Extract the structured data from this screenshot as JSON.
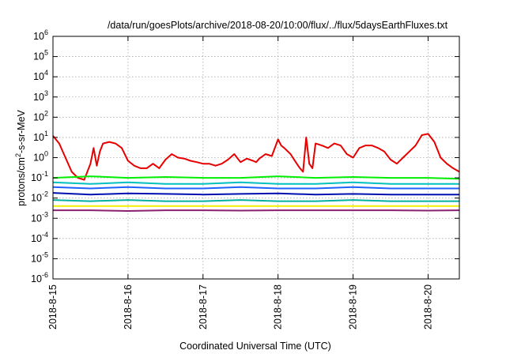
{
  "chart_data": {
    "type": "line",
    "title": "/data/run/goesPlots/archive/2018-08-20/10:00/flux/../flux/5daysEarthFluxes.txt",
    "xlabel": "Coordinated Universal Time (UTC)",
    "ylabel_base": "protons/cm",
    "ylabel_sup": "2",
    "ylabel_rest": "-s-sr-MeV",
    "y_scale": "log",
    "ylim": [
      1e-06,
      1000000.0
    ],
    "xlim": [
      "2018-08-15 00:00",
      "2018-08-20 10:00"
    ],
    "grid": true,
    "legend": "none",
    "x_ticks": [
      "2018-8-15",
      "2018-8-16",
      "2018-8-17",
      "2018-8-18",
      "2018-8-19",
      "2018-8-20"
    ],
    "y_ticks": [
      {
        "base": "10",
        "exp": "-6"
      },
      {
        "base": "10",
        "exp": "-5"
      },
      {
        "base": "10",
        "exp": "-4"
      },
      {
        "base": "10",
        "exp": "-3"
      },
      {
        "base": "10",
        "exp": "-2"
      },
      {
        "base": "10",
        "exp": "-1"
      },
      {
        "base": "10",
        "exp": "0"
      },
      {
        "base": "10",
        "exp": "1"
      },
      {
        "base": "10",
        "exp": "2"
      },
      {
        "base": "10",
        "exp": "3"
      },
      {
        "base": "10",
        "exp": "4"
      },
      {
        "base": "10",
        "exp": "5"
      },
      {
        "base": "10",
        "exp": "6"
      }
    ],
    "series": [
      {
        "color": "#e60000",
        "x": [
          "2018-08-15 00:00",
          "2018-08-15 02:00",
          "2018-08-15 04:00",
          "2018-08-15 06:00",
          "2018-08-15 08:00",
          "2018-08-15 10:00",
          "2018-08-15 12:00",
          "2018-08-15 13:00",
          "2018-08-15 14:00",
          "2018-08-15 15:00",
          "2018-08-15 16:00",
          "2018-08-15 18:00",
          "2018-08-15 20:00",
          "2018-08-15 22:00",
          "2018-08-16 00:00",
          "2018-08-16 02:00",
          "2018-08-16 04:00",
          "2018-08-16 06:00",
          "2018-08-16 08:00",
          "2018-08-16 10:00",
          "2018-08-16 12:00",
          "2018-08-16 14:00",
          "2018-08-16 16:00",
          "2018-08-16 18:00",
          "2018-08-16 20:00",
          "2018-08-16 22:00",
          "2018-08-17 00:00",
          "2018-08-17 02:00",
          "2018-08-17 04:00",
          "2018-08-17 06:00",
          "2018-08-17 08:00",
          "2018-08-17 10:00",
          "2018-08-17 12:00",
          "2018-08-17 14:00",
          "2018-08-17 16:00",
          "2018-08-17 17:00",
          "2018-08-17 18:00",
          "2018-08-17 20:00",
          "2018-08-17 22:00",
          "2018-08-18 00:00",
          "2018-08-18 01:00",
          "2018-08-18 02:00",
          "2018-08-18 04:00",
          "2018-08-18 06:00",
          "2018-08-18 07:00",
          "2018-08-18 08:00",
          "2018-08-18 09:00",
          "2018-08-18 10:00",
          "2018-08-18 11:00",
          "2018-08-18 12:00",
          "2018-08-18 14:00",
          "2018-08-18 16:00",
          "2018-08-18 18:00",
          "2018-08-18 20:00",
          "2018-08-18 22:00",
          "2018-08-19 00:00",
          "2018-08-19 02:00",
          "2018-08-19 04:00",
          "2018-08-19 06:00",
          "2018-08-19 08:00",
          "2018-08-19 10:00",
          "2018-08-19 12:00",
          "2018-08-19 14:00",
          "2018-08-19 16:00",
          "2018-08-19 18:00",
          "2018-08-19 20:00",
          "2018-08-19 22:00",
          "2018-08-20 00:00",
          "2018-08-20 02:00",
          "2018-08-20 04:00",
          "2018-08-20 06:00",
          "2018-08-20 08:00",
          "2018-08-20 10:00"
        ],
        "y": [
          12,
          5,
          1,
          0.2,
          0.1,
          0.08,
          0.5,
          3,
          0.4,
          2,
          5,
          6,
          5,
          3,
          0.7,
          0.4,
          0.3,
          0.3,
          0.5,
          0.3,
          0.8,
          1.5,
          1,
          0.9,
          0.7,
          0.6,
          0.5,
          0.5,
          0.4,
          0.5,
          0.8,
          1.5,
          0.6,
          0.9,
          0.7,
          0.6,
          0.9,
          1.5,
          1.2,
          8,
          4,
          3,
          1.5,
          0.5,
          0.3,
          0.2,
          10,
          0.5,
          0.3,
          5,
          4,
          3,
          5,
          4,
          1.5,
          1,
          3,
          4,
          4,
          3,
          2,
          0.8,
          0.5,
          1,
          2,
          4,
          13,
          15,
          6,
          1,
          0.5,
          0.3,
          0.2
        ]
      },
      {
        "color": "#00ee00",
        "x": [
          "2018-08-15 00:00",
          "2018-08-15 12:00",
          "2018-08-16 00:00",
          "2018-08-16 12:00",
          "2018-08-17 00:00",
          "2018-08-17 12:00",
          "2018-08-18 00:00",
          "2018-08-18 12:00",
          "2018-08-19 00:00",
          "2018-08-19 12:00",
          "2018-08-20 00:00",
          "2018-08-20 10:00"
        ],
        "y": [
          0.1,
          0.12,
          0.1,
          0.11,
          0.1,
          0.1,
          0.12,
          0.1,
          0.11,
          0.1,
          0.1,
          0.09
        ]
      },
      {
        "color": "#00c0c0",
        "x": [
          "2018-08-15 00:00",
          "2018-08-15 12:00",
          "2018-08-16 00:00",
          "2018-08-16 12:00",
          "2018-08-17 00:00",
          "2018-08-17 12:00",
          "2018-08-18 00:00",
          "2018-08-18 12:00",
          "2018-08-19 00:00",
          "2018-08-19 12:00",
          "2018-08-20 00:00",
          "2018-08-20 10:00"
        ],
        "y": [
          0.06,
          0.05,
          0.06,
          0.05,
          0.05,
          0.06,
          0.05,
          0.05,
          0.06,
          0.05,
          0.05,
          0.05
        ]
      },
      {
        "color": "#2060ff",
        "x": [
          "2018-08-15 00:00",
          "2018-08-15 12:00",
          "2018-08-16 00:00",
          "2018-08-16 12:00",
          "2018-08-17 00:00",
          "2018-08-17 12:00",
          "2018-08-18 00:00",
          "2018-08-18 12:00",
          "2018-08-19 00:00",
          "2018-08-19 12:00",
          "2018-08-20 00:00",
          "2018-08-20 10:00"
        ],
        "y": [
          0.035,
          0.03,
          0.035,
          0.03,
          0.03,
          0.035,
          0.03,
          0.03,
          0.035,
          0.03,
          0.03,
          0.03
        ]
      },
      {
        "color": "#0010b0",
        "x": [
          "2018-08-15 00:00",
          "2018-08-15 12:00",
          "2018-08-16 00:00",
          "2018-08-16 12:00",
          "2018-08-17 00:00",
          "2018-08-17 12:00",
          "2018-08-18 00:00",
          "2018-08-18 12:00",
          "2018-08-19 00:00",
          "2018-08-19 12:00",
          "2018-08-20 00:00",
          "2018-08-20 10:00"
        ],
        "y": [
          0.018,
          0.015,
          0.017,
          0.016,
          0.015,
          0.016,
          0.017,
          0.015,
          0.016,
          0.015,
          0.015,
          0.015
        ]
      },
      {
        "color": "#00b0a0",
        "x": [
          "2018-08-15 00:00",
          "2018-08-15 12:00",
          "2018-08-16 00:00",
          "2018-08-16 12:00",
          "2018-08-17 00:00",
          "2018-08-17 12:00",
          "2018-08-18 00:00",
          "2018-08-18 12:00",
          "2018-08-19 00:00",
          "2018-08-19 12:00",
          "2018-08-20 00:00",
          "2018-08-20 10:00"
        ],
        "y": [
          0.008,
          0.007,
          0.008,
          0.007,
          0.007,
          0.008,
          0.007,
          0.007,
          0.008,
          0.007,
          0.007,
          0.007
        ]
      },
      {
        "color": "#f0f000",
        "x": [
          "2018-08-15 00:00",
          "2018-08-15 12:00",
          "2018-08-16 00:00",
          "2018-08-16 12:00",
          "2018-08-17 00:00",
          "2018-08-17 12:00",
          "2018-08-18 00:00",
          "2018-08-18 12:00",
          "2018-08-19 00:00",
          "2018-08-19 12:00",
          "2018-08-20 00:00",
          "2018-08-20 10:00"
        ],
        "y": [
          0.004,
          0.004,
          0.004,
          0.004,
          0.004,
          0.004,
          0.004,
          0.004,
          0.004,
          0.004,
          0.004,
          0.004
        ]
      },
      {
        "color": "#8b2070",
        "x": [
          "2018-08-15 00:00",
          "2018-08-15 12:00",
          "2018-08-16 00:00",
          "2018-08-16 12:00",
          "2018-08-17 00:00",
          "2018-08-17 12:00",
          "2018-08-18 00:00",
          "2018-08-18 12:00",
          "2018-08-19 00:00",
          "2018-08-19 12:00",
          "2018-08-20 00:00",
          "2018-08-20 10:00"
        ],
        "y": [
          0.0025,
          0.0025,
          0.0023,
          0.0025,
          0.0025,
          0.0024,
          0.0025,
          0.0025,
          0.0025,
          0.0025,
          0.0024,
          0.0025
        ]
      }
    ]
  }
}
